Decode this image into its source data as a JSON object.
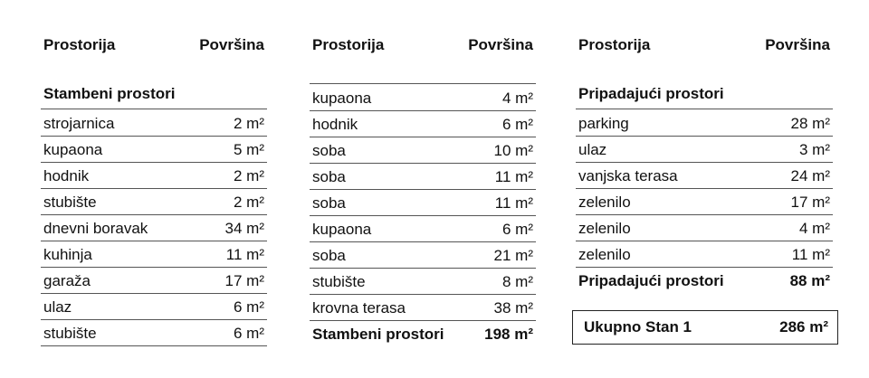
{
  "headers": {
    "room": "Prostorija",
    "area": "Površina"
  },
  "col1": {
    "section": "Stambeni prostori",
    "rows": [
      {
        "name": "strojarnica",
        "area": "2 m²"
      },
      {
        "name": "kupaona",
        "area": "5 m²"
      },
      {
        "name": "hodnik",
        "area": "2 m²"
      },
      {
        "name": "stubište",
        "area": "2 m²"
      },
      {
        "name": "dnevni boravak",
        "area": "34 m²"
      },
      {
        "name": "kuhinja",
        "area": "11 m²"
      },
      {
        "name": "garaža",
        "area": "17 m²"
      },
      {
        "name": "ulaz",
        "area": "6 m²"
      },
      {
        "name": "stubište",
        "area": "6 m²"
      }
    ]
  },
  "col2": {
    "rows": [
      {
        "name": "kupaona",
        "area": "4 m²"
      },
      {
        "name": "hodnik",
        "area": "6 m²"
      },
      {
        "name": "soba",
        "area": "10 m²"
      },
      {
        "name": "soba",
        "area": "11 m²"
      },
      {
        "name": "soba",
        "area": "11 m²"
      },
      {
        "name": "kupaona",
        "area": "6 m²"
      },
      {
        "name": "soba",
        "area": "21 m²"
      },
      {
        "name": "stubište",
        "area": "8 m²"
      },
      {
        "name": "krovna terasa",
        "area": "38 m²"
      }
    ],
    "total": {
      "name": "Stambeni prostori",
      "area": "198 m²"
    }
  },
  "col3": {
    "section": "Pripadajući prostori",
    "rows": [
      {
        "name": "parking",
        "area": "28 m²"
      },
      {
        "name": "ulaz",
        "area": "3 m²"
      },
      {
        "name": "vanjska terasa",
        "area": "24 m²"
      },
      {
        "name": "zelenilo",
        "area": "17 m²"
      },
      {
        "name": "zelenilo",
        "area": "4 m²"
      },
      {
        "name": "zelenilo",
        "area": "11 m²"
      }
    ],
    "total": {
      "name": "Pripadajući prostori",
      "area": "88 m²"
    }
  },
  "grand_total": {
    "name": "Ukupno Stan 1",
    "area": "286 m²"
  }
}
